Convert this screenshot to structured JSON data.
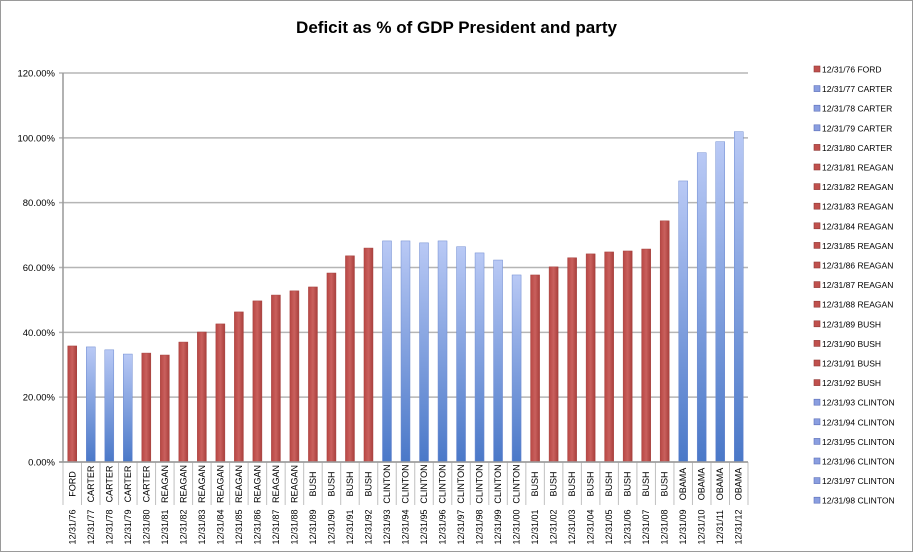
{
  "chart_data": {
    "type": "bar",
    "title": "Deficit as % of GDP President and party",
    "xlabel": "",
    "ylabel": "",
    "ylim": [
      0,
      120
    ],
    "yticks": [
      "0.00%",
      "20.00%",
      "40.00%",
      "60.00%",
      "80.00%",
      "100.00%",
      "120.00%"
    ],
    "grid": true,
    "legend_position": "right",
    "colors": {
      "red": "#c0504d",
      "blue": "#7f9fe0"
    },
    "categories": [
      "12/31/76",
      "12/31/77",
      "12/31/78",
      "12/31/79",
      "12/31/80",
      "12/31/81",
      "12/31/82",
      "12/31/83",
      "12/31/84",
      "12/31/85",
      "12/31/86",
      "12/31/87",
      "12/31/88",
      "12/31/89",
      "12/31/90",
      "12/31/91",
      "12/31/92",
      "12/31/93",
      "12/31/94",
      "12/31/95",
      "12/31/96",
      "12/31/97",
      "12/31/98",
      "12/31/99",
      "12/31/00",
      "12/31/01",
      "12/31/02",
      "12/31/03",
      "12/31/04",
      "12/31/05",
      "12/31/06",
      "12/31/07",
      "12/31/08",
      "12/31/09",
      "12/31/10",
      "12/31/11",
      "12/31/12"
    ],
    "presidents": [
      "FORD",
      "CARTER",
      "CARTER",
      "CARTER",
      "CARTER",
      "REAGAN",
      "REAGAN",
      "REAGAN",
      "REAGAN",
      "REAGAN",
      "REAGAN",
      "REAGAN",
      "REAGAN",
      "BUSH",
      "BUSH",
      "BUSH",
      "BUSH",
      "CLINTON",
      "CLINTON",
      "CLINTON",
      "CLINTON",
      "CLINTON",
      "CLINTON",
      "CLINTON",
      "CLINTON",
      "BUSH",
      "BUSH",
      "BUSH",
      "BUSH",
      "BUSH",
      "BUSH",
      "BUSH",
      "BUSH",
      "OBAMA",
      "OBAMA",
      "OBAMA",
      "OBAMA"
    ],
    "bar_colors": [
      "red",
      "blue",
      "blue",
      "blue",
      "red",
      "red",
      "red",
      "red",
      "red",
      "red",
      "red",
      "red",
      "red",
      "red",
      "red",
      "red",
      "red",
      "blue",
      "blue",
      "blue",
      "blue",
      "blue",
      "blue",
      "blue",
      "blue",
      "red",
      "red",
      "red",
      "red",
      "red",
      "red",
      "red",
      "red",
      "blue",
      "blue",
      "blue",
      "blue"
    ],
    "values": [
      35.8,
      35.5,
      34.6,
      33.3,
      33.6,
      33.0,
      37.0,
      40.1,
      42.6,
      46.3,
      49.7,
      51.5,
      52.8,
      54.0,
      58.3,
      63.6,
      66.0,
      68.2,
      68.2,
      67.6,
      68.2,
      66.4,
      64.5,
      62.3,
      57.7,
      57.7,
      60.2,
      63.0,
      64.2,
      64.8,
      65.1,
      65.7,
      74.4,
      86.7,
      95.4,
      98.8,
      101.9
    ],
    "legend": [
      "12/31/76 FORD",
      "12/31/77 CARTER",
      "12/31/78 CARTER",
      "12/31/79 CARTER",
      "12/31/80 CARTER",
      "12/31/81 REAGAN",
      "12/31/82 REAGAN",
      "12/31/83 REAGAN",
      "12/31/84 REAGAN",
      "12/31/85 REAGAN",
      "12/31/86 REAGAN",
      "12/31/87 REAGAN",
      "12/31/88 REAGAN",
      "12/31/89 BUSH",
      "12/31/90 BUSH",
      "12/31/91 BUSH",
      "12/31/92 BUSH",
      "12/31/93 CLINTON",
      "12/31/94 CLINTON",
      "12/31/95 CLINTON",
      "12/31/96 CLINTON",
      "12/31/97 CLINTON",
      "12/31/98 CLINTON"
    ]
  }
}
